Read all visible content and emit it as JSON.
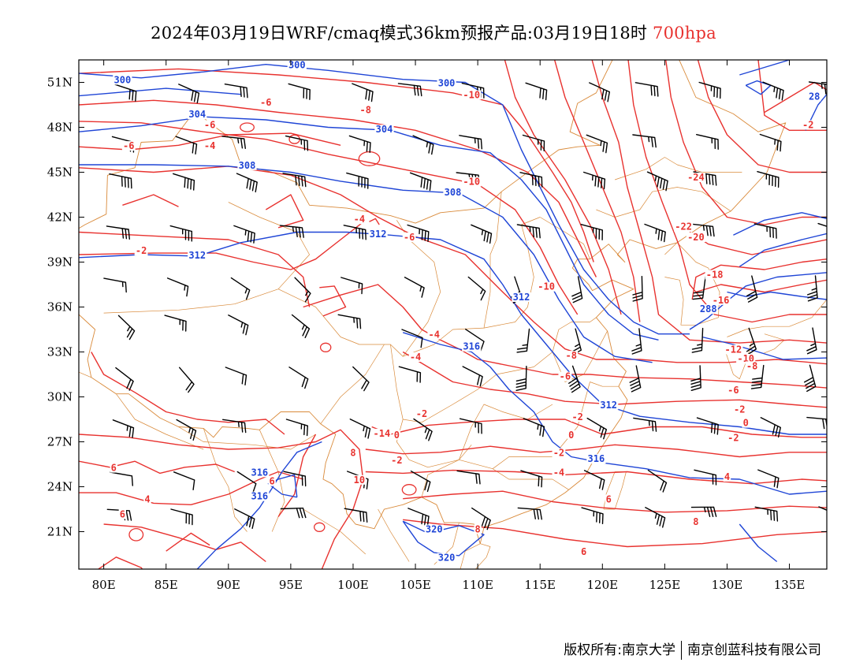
{
  "title": {
    "text": "2024年03月19日WRF/cmaq模式36km预报产品:03月19日18时",
    "level": "700hpa",
    "level_color": "#e8322f"
  },
  "map": {
    "extent": {
      "lon": [
        78,
        138
      ],
      "lat": [
        18.5,
        52.5
      ]
    },
    "lon_ticks": [
      "80E",
      "85E",
      "90E",
      "95E",
      "100E",
      "105E",
      "110E",
      "115E",
      "120E",
      "125E",
      "130E",
      "135E"
    ],
    "lat_ticks": [
      "51N",
      "48N",
      "45N",
      "42N",
      "39N",
      "36N",
      "33N",
      "30N",
      "27N",
      "24N",
      "21N"
    ],
    "colors": {
      "temperature": "#e8322f",
      "height": "#1f45d6",
      "border": "#d98a3a",
      "wind": "#000000"
    },
    "height_labels": [
      {
        "text": "300",
        "lon": 81.5,
        "lat": 51.0
      },
      {
        "text": "300",
        "lon": 95.5,
        "lat": 52.0
      },
      {
        "text": "300",
        "lon": 107.5,
        "lat": 50.8
      },
      {
        "text": "304",
        "lon": 87.5,
        "lat": 48.7
      },
      {
        "text": "304",
        "lon": 102.5,
        "lat": 47.7
      },
      {
        "text": "308",
        "lon": 91.5,
        "lat": 45.3
      },
      {
        "text": "308",
        "lon": 108.0,
        "lat": 43.5
      },
      {
        "text": "312",
        "lon": 87.5,
        "lat": 39.3
      },
      {
        "text": "312",
        "lon": 102.0,
        "lat": 40.7
      },
      {
        "text": "312",
        "lon": 113.5,
        "lat": 36.5
      },
      {
        "text": "312",
        "lon": 120.5,
        "lat": 29.3
      },
      {
        "text": "316",
        "lon": 109.5,
        "lat": 33.2
      },
      {
        "text": "316",
        "lon": 119.5,
        "lat": 25.7
      },
      {
        "text": "316",
        "lon": 92.5,
        "lat": 24.8
      },
      {
        "text": "316",
        "lon": 92.5,
        "lat": 23.2
      },
      {
        "text": "320",
        "lon": 106.5,
        "lat": 21.0
      },
      {
        "text": "320",
        "lon": 107.5,
        "lat": 19.1
      },
      {
        "text": "288",
        "lon": 128.5,
        "lat": 35.7
      },
      {
        "text": "28",
        "lon": 137.0,
        "lat": 49.9
      }
    ],
    "temperature_labels": [
      {
        "text": "-6",
        "lon": 93.0,
        "lat": 49.5
      },
      {
        "text": "-6",
        "lon": 88.5,
        "lat": 48.0
      },
      {
        "text": "-6",
        "lon": 82.0,
        "lat": 46.6
      },
      {
        "text": "-4",
        "lon": 88.5,
        "lat": 46.6
      },
      {
        "text": "-8",
        "lon": 101.0,
        "lat": 49.0
      },
      {
        "text": "-10",
        "lon": 109.5,
        "lat": 50.0
      },
      {
        "text": "-10",
        "lon": 109.5,
        "lat": 44.2
      },
      {
        "text": "-4",
        "lon": 100.5,
        "lat": 41.7
      },
      {
        "text": "-6",
        "lon": 104.5,
        "lat": 40.5
      },
      {
        "text": "-2",
        "lon": 83.0,
        "lat": 39.6
      },
      {
        "text": "-10",
        "lon": 115.5,
        "lat": 37.2
      },
      {
        "text": "-24",
        "lon": 127.5,
        "lat": 44.5
      },
      {
        "text": "-22",
        "lon": 126.5,
        "lat": 41.2
      },
      {
        "text": "-20",
        "lon": 127.5,
        "lat": 40.5
      },
      {
        "text": "-18",
        "lon": 129.0,
        "lat": 38.0
      },
      {
        "text": "-16",
        "lon": 129.5,
        "lat": 36.3
      },
      {
        "text": "-2",
        "lon": 136.5,
        "lat": 48.0
      },
      {
        "text": "-4",
        "lon": 106.5,
        "lat": 34.0
      },
      {
        "text": "-4",
        "lon": 105.0,
        "lat": 32.5
      },
      {
        "text": "-8",
        "lon": 117.5,
        "lat": 32.6
      },
      {
        "text": "-6",
        "lon": 117.0,
        "lat": 31.2
      },
      {
        "text": "-12",
        "lon": 130.5,
        "lat": 33.0
      },
      {
        "text": "-10",
        "lon": 131.5,
        "lat": 32.4
      },
      {
        "text": "-8",
        "lon": 132.0,
        "lat": 31.9
      },
      {
        "text": "-6",
        "lon": 130.5,
        "lat": 30.3
      },
      {
        "text": "-2",
        "lon": 131.0,
        "lat": 29.0
      },
      {
        "text": "-2",
        "lon": 118.0,
        "lat": 28.5
      },
      {
        "text": "0",
        "lon": 131.5,
        "lat": 28.1
      },
      {
        "text": "-2",
        "lon": 130.5,
        "lat": 27.1
      },
      {
        "text": "-2",
        "lon": 105.5,
        "lat": 28.7
      },
      {
        "text": "0",
        "lon": 103.5,
        "lat": 27.3
      },
      {
        "text": "0",
        "lon": 117.5,
        "lat": 27.3
      },
      {
        "text": "-2",
        "lon": 116.5,
        "lat": 26.1
      },
      {
        "text": "-2",
        "lon": 103.5,
        "lat": 25.6
      },
      {
        "text": "-4",
        "lon": 116.5,
        "lat": 24.8
      },
      {
        "text": "4",
        "lon": 130.0,
        "lat": 24.5
      },
      {
        "text": "-14",
        "lon": 102.3,
        "lat": 27.4
      },
      {
        "text": "8",
        "lon": 100.0,
        "lat": 26.1
      },
      {
        "text": "10",
        "lon": 100.5,
        "lat": 24.3
      },
      {
        "text": "6",
        "lon": 80.8,
        "lat": 25.1
      },
      {
        "text": "6",
        "lon": 81.5,
        "lat": 22.0
      },
      {
        "text": "4",
        "lon": 83.5,
        "lat": 23.0
      },
      {
        "text": "6",
        "lon": 93.5,
        "lat": 24.2
      },
      {
        "text": "6",
        "lon": 120.5,
        "lat": 23.0
      },
      {
        "text": "6",
        "lon": 118.5,
        "lat": 19.5
      },
      {
        "text": "8",
        "lon": 110.0,
        "lat": 21.0
      },
      {
        "text": "8",
        "lon": 127.5,
        "lat": 21.5
      }
    ]
  },
  "copyright": {
    "owner": "版权所有:南京大学",
    "company": "南京创蓝科技有限公司"
  }
}
